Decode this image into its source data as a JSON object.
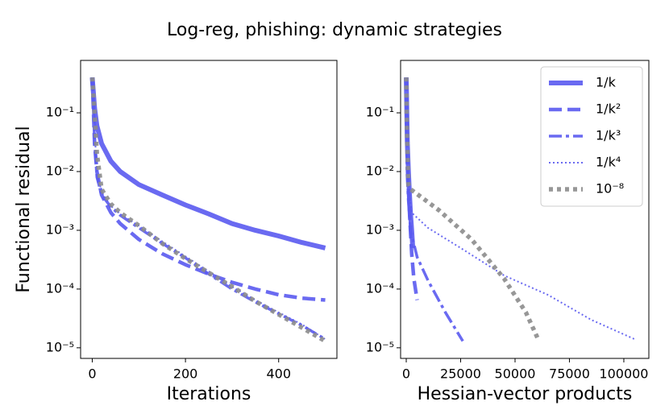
{
  "chart_data": [
    {
      "type": "line",
      "title": "Log-reg, phishing: dynamic strategies",
      "xlabel": "Iterations",
      "ylabel": "Functional residual",
      "yscale": "log",
      "xlim": [
        -25,
        525
      ],
      "ylim": [
        6.6e-06,
        0.78
      ],
      "xticks": [
        0,
        200,
        400
      ],
      "yticks": [
        {
          "value": 1e-05,
          "label": "10⁻⁵"
        },
        {
          "value": 0.0001,
          "label": "10⁻⁴"
        },
        {
          "value": 0.001,
          "label": "10⁻³"
        },
        {
          "value": 0.01,
          "label": "10⁻²"
        },
        {
          "value": 0.1,
          "label": "10⁻¹"
        }
      ],
      "series": [
        {
          "name": "1/k",
          "color": "#5a5af0",
          "linestyle": "solid",
          "x": [
            0,
            5,
            10,
            20,
            40,
            60,
            100,
            150,
            200,
            250,
            300,
            350,
            400,
            450,
            500
          ],
          "values": [
            0.4,
            0.12,
            0.06,
            0.03,
            0.015,
            0.01,
            0.006,
            0.004,
            0.0027,
            0.0019,
            0.0013,
            0.001,
            0.0008,
            0.00062,
            0.0005
          ]
        },
        {
          "name": "1/k²",
          "color": "#5a5af0",
          "linestyle": "dashed",
          "x": [
            0,
            5,
            10,
            20,
            40,
            60,
            100,
            150,
            200,
            250,
            300,
            350,
            400,
            450,
            500
          ],
          "values": [
            0.4,
            0.03,
            0.01,
            0.004,
            0.002,
            0.0013,
            0.0007,
            0.0004,
            0.00026,
            0.00018,
            0.00013,
            0.0001,
            8e-05,
            7e-05,
            6.5e-05
          ]
        },
        {
          "name": "1/k³",
          "color": "#5a5af0",
          "linestyle": "dashdot",
          "x": [
            0,
            5,
            10,
            20,
            40,
            60,
            100,
            150,
            200,
            250,
            300,
            350,
            400,
            450,
            500
          ],
          "values": [
            0.4,
            0.03,
            0.008,
            0.004,
            0.0025,
            0.0018,
            0.0011,
            0.0006,
            0.00034,
            0.00018,
            0.0001,
            6e-05,
            3.8e-05,
            2.4e-05,
            1.4e-05
          ]
        },
        {
          "name": "1/k⁴",
          "color": "#5a5af0",
          "linestyle": "dotted",
          "x": [
            0,
            5,
            10,
            20,
            40,
            60,
            100,
            150,
            200,
            250,
            300,
            350,
            400,
            450,
            500
          ],
          "values": [
            0.4,
            0.05,
            0.01,
            0.0045,
            0.0026,
            0.0019,
            0.0012,
            0.00065,
            0.00036,
            0.0002,
            0.00011,
            6.5e-05,
            4e-05,
            2.5e-05,
            1.4e-05
          ]
        },
        {
          "name": "10⁻⁸",
          "color": "#8c8c8c",
          "linestyle": "dotted-heavy",
          "x": [
            0,
            5,
            10,
            20,
            40,
            60,
            100,
            150,
            200,
            250,
            300,
            350,
            400,
            450,
            500
          ],
          "values": [
            0.4,
            0.1,
            0.02,
            0.005,
            0.0028,
            0.002,
            0.0012,
            0.0006,
            0.00033,
            0.00019,
            0.00011,
            6.2e-05,
            3.7e-05,
            2.2e-05,
            1.3e-05
          ]
        }
      ]
    },
    {
      "type": "line",
      "xlabel": "Hessian-vector products",
      "legend": "upper right",
      "yscale": "log",
      "xlim": [
        -2600,
        111500
      ],
      "ylim": [
        6.6e-06,
        0.78
      ],
      "xticks": [
        0,
        25000,
        50000,
        75000,
        100000
      ],
      "yticks": [
        {
          "value": 1e-05,
          "label": "10⁻⁵"
        },
        {
          "value": 0.0001,
          "label": "10⁻⁴"
        },
        {
          "value": 0.001,
          "label": "10⁻³"
        },
        {
          "value": 0.01,
          "label": "10⁻²"
        },
        {
          "value": 0.1,
          "label": "10⁻¹"
        }
      ],
      "series": [
        {
          "name": "1/k",
          "color": "#5a5af0",
          "linestyle": "solid",
          "x": [
            0,
            500,
            1000,
            1500,
            2000,
            2500,
            3000
          ],
          "values": [
            0.4,
            0.03,
            0.01,
            0.004,
            0.0018,
            0.001,
            0.0005
          ]
        },
        {
          "name": "1/k²",
          "color": "#5a5af0",
          "linestyle": "dashed",
          "x": [
            0,
            600,
            1500,
            2500,
            3500,
            5000
          ],
          "values": [
            0.4,
            0.01,
            0.002,
            0.0004,
            0.00015,
            6.5e-05
          ]
        },
        {
          "name": "1/k³",
          "color": "#5a5af0",
          "linestyle": "dashdot",
          "x": [
            0,
            300,
            1000,
            2000,
            5000,
            10000,
            18000,
            26000
          ],
          "values": [
            0.4,
            0.01,
            0.003,
            0.001,
            0.00035,
            0.00014,
            4e-05,
            1.3e-05
          ]
        },
        {
          "name": "1/k⁴",
          "color": "#5a5af0",
          "linestyle": "dotted",
          "x": [
            0,
            500,
            1500,
            2500,
            10000,
            25000,
            45000,
            65000,
            85000,
            105000
          ],
          "values": [
            0.4,
            0.02,
            0.004,
            0.002,
            0.0011,
            0.0005,
            0.00017,
            8e-05,
            3e-05,
            1.4e-05
          ]
        },
        {
          "name": "10⁻⁸",
          "color": "#8c8c8c",
          "linestyle": "dotted-heavy",
          "x": [
            0,
            300,
            1000,
            2000,
            15000,
            30000,
            45000,
            55000,
            61000
          ],
          "values": [
            0.4,
            0.05,
            0.006,
            0.005,
            0.0022,
            0.0007,
            0.00015,
            4e-05,
            1.3e-05
          ]
        }
      ]
    }
  ]
}
